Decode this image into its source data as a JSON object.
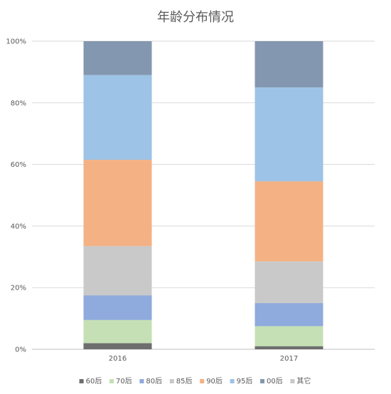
{
  "chart_data": {
    "type": "bar",
    "stacked": true,
    "percent_stacked": true,
    "title": "年龄分布情况",
    "xlabel": "",
    "ylabel": "",
    "categories": [
      "2016",
      "2017"
    ],
    "ylim": [
      0,
      100
    ],
    "y_ticks": [
      "0%",
      "20%",
      "40%",
      "60%",
      "80%",
      "100%"
    ],
    "y_tick_values": [
      0,
      20,
      40,
      60,
      80,
      100
    ],
    "grid": true,
    "legend_position": "bottom",
    "series": [
      {
        "name": "60后",
        "color": "#6e6e6e",
        "values": [
          2,
          1
        ]
      },
      {
        "name": "70后",
        "color": "#c5e0b4",
        "values": [
          7.5,
          6.5
        ]
      },
      {
        "name": "80后",
        "color": "#8faadc",
        "values": [
          8,
          7.5
        ]
      },
      {
        "name": "85后",
        "color": "#c9c9c9",
        "values": [
          16,
          13.5
        ]
      },
      {
        "name": "90后",
        "color": "#f4b183",
        "values": [
          28,
          26
        ]
      },
      {
        "name": "95后",
        "color": "#9dc3e6",
        "values": [
          27.5,
          30.5
        ]
      },
      {
        "name": "00后",
        "color": "#8497b0",
        "values": [
          11,
          15
        ]
      }
    ],
    "legend": [
      {
        "name": "60后",
        "color": "#6e6e6e"
      },
      {
        "name": "70后",
        "color": "#c5e0b4"
      },
      {
        "name": "80后",
        "color": "#8faadc"
      },
      {
        "name": "85后",
        "color": "#c9c9c9"
      },
      {
        "name": "90后",
        "color": "#f4b183"
      },
      {
        "name": "95后",
        "color": "#9dc3e6"
      },
      {
        "name": "00后",
        "color": "#8497b0"
      },
      {
        "name": "其它",
        "color": "#c9c9c9"
      }
    ]
  }
}
